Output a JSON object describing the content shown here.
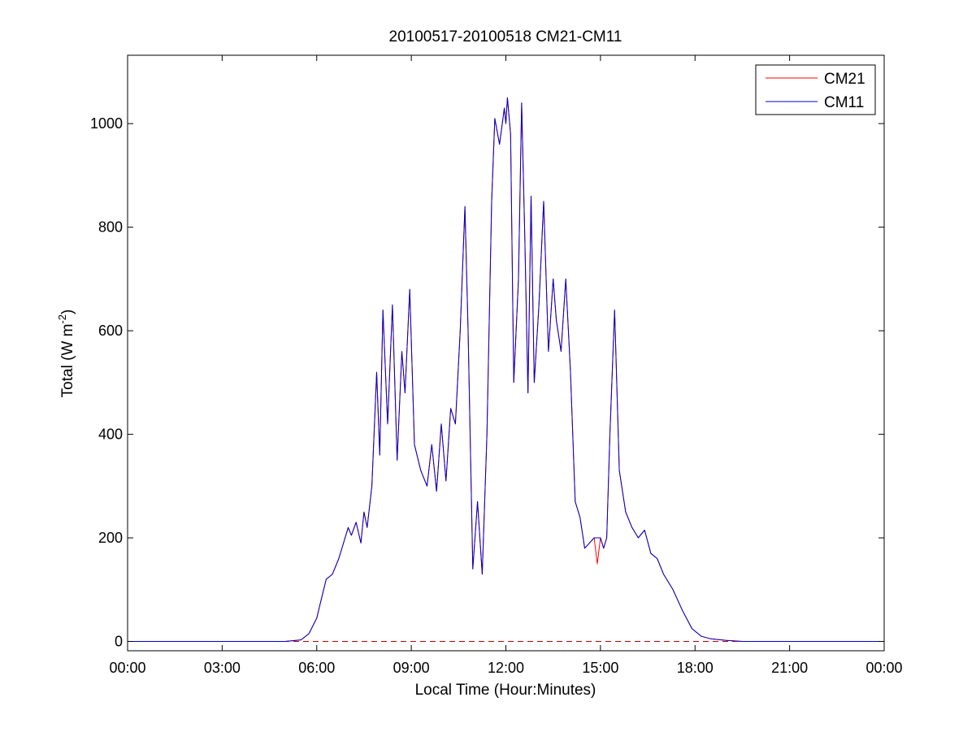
{
  "chart_data": {
    "type": "line",
    "title": "20100517-20100518 CM21-CM11",
    "xlabel": "Local Time (Hour:Minutes)",
    "ylabel": {
      "base": "Total (W m",
      "superscript": "-2",
      "close": ")"
    },
    "x_unit": "hours",
    "xlim": [
      0,
      24
    ],
    "ylim": [
      -18,
      1132
    ],
    "x_ticks": [
      0,
      3,
      6,
      9,
      12,
      15,
      18,
      21,
      24
    ],
    "x_tick_labels": [
      "00:00",
      "03:00",
      "06:00",
      "09:00",
      "12:00",
      "15:00",
      "18:00",
      "21:00",
      "00:00"
    ],
    "y_ticks": [
      0,
      200,
      400,
      600,
      800,
      1000
    ],
    "y_tick_labels": [
      "0",
      "200",
      "400",
      "600",
      "800",
      "1000"
    ],
    "grid": false,
    "legend": {
      "position": "top-right"
    },
    "zero_reference_line": {
      "y": 0,
      "style": "dashed",
      "color": "#c00000"
    },
    "series": [
      {
        "name": "CM21",
        "color": "#ff0000",
        "x": [
          0,
          1,
          2,
          3,
          4,
          5,
          5.5,
          5.75,
          6.0,
          6.1,
          6.3,
          6.5,
          6.7,
          6.85,
          7.0,
          7.1,
          7.25,
          7.4,
          7.5,
          7.6,
          7.75,
          7.9,
          8.0,
          8.1,
          8.25,
          8.4,
          8.55,
          8.7,
          8.8,
          8.95,
          9.1,
          9.3,
          9.5,
          9.65,
          9.8,
          9.95,
          10.1,
          10.25,
          10.4,
          10.55,
          10.7,
          10.8,
          10.95,
          11.1,
          11.25,
          11.4,
          11.55,
          11.65,
          11.8,
          11.95,
          12.0,
          12.05,
          12.15,
          12.25,
          12.4,
          12.5,
          12.6,
          12.7,
          12.8,
          12.9,
          13.05,
          13.2,
          13.35,
          13.5,
          13.6,
          13.75,
          13.9,
          14.05,
          14.2,
          14.35,
          14.5,
          14.65,
          14.8,
          14.9,
          15.0,
          15.1,
          15.2,
          15.3,
          15.45,
          15.6,
          15.8,
          16.0,
          16.2,
          16.4,
          16.6,
          16.8,
          17.0,
          17.3,
          17.6,
          17.9,
          18.2,
          18.5,
          19.0,
          19.5,
          20,
          21,
          22,
          23,
          24
        ],
        "y": [
          0,
          0,
          0,
          0,
          0,
          0,
          3,
          15,
          45,
          70,
          120,
          130,
          160,
          190,
          220,
          205,
          230,
          190,
          250,
          220,
          300,
          520,
          360,
          640,
          420,
          650,
          350,
          560,
          480,
          680,
          380,
          330,
          300,
          380,
          290,
          420,
          310,
          450,
          420,
          600,
          840,
          600,
          140,
          270,
          130,
          400,
          850,
          1010,
          960,
          1030,
          1000,
          1050,
          980,
          500,
          700,
          1040,
          780,
          480,
          860,
          500,
          650,
          850,
          560,
          700,
          620,
          560,
          700,
          520,
          270,
          240,
          180,
          190,
          200,
          150,
          200,
          180,
          200,
          400,
          640,
          330,
          250,
          220,
          200,
          215,
          170,
          160,
          130,
          100,
          60,
          25,
          10,
          5,
          2,
          0,
          0,
          0,
          0,
          0,
          0
        ]
      },
      {
        "name": "CM11",
        "color": "#0000cc",
        "x": [
          0,
          1,
          2,
          3,
          4,
          5,
          5.5,
          5.75,
          6.0,
          6.1,
          6.3,
          6.5,
          6.7,
          6.85,
          7.0,
          7.1,
          7.25,
          7.4,
          7.5,
          7.6,
          7.75,
          7.9,
          8.0,
          8.1,
          8.25,
          8.4,
          8.55,
          8.7,
          8.8,
          8.95,
          9.1,
          9.3,
          9.5,
          9.65,
          9.8,
          9.95,
          10.1,
          10.25,
          10.4,
          10.55,
          10.7,
          10.8,
          10.95,
          11.1,
          11.25,
          11.4,
          11.55,
          11.65,
          11.8,
          11.95,
          12.0,
          12.05,
          12.15,
          12.25,
          12.4,
          12.5,
          12.6,
          12.7,
          12.8,
          12.9,
          13.05,
          13.2,
          13.35,
          13.5,
          13.6,
          13.75,
          13.9,
          14.05,
          14.2,
          14.35,
          14.5,
          14.65,
          14.8,
          14.9,
          15.0,
          15.1,
          15.2,
          15.3,
          15.45,
          15.6,
          15.8,
          16.0,
          16.2,
          16.4,
          16.6,
          16.8,
          17.0,
          17.3,
          17.6,
          17.9,
          18.2,
          18.5,
          19.0,
          19.5,
          20,
          21,
          22,
          23,
          24
        ],
        "y": [
          0,
          0,
          0,
          0,
          0,
          0,
          3,
          15,
          45,
          70,
          120,
          130,
          160,
          190,
          220,
          205,
          230,
          190,
          250,
          220,
          300,
          520,
          360,
          640,
          420,
          650,
          350,
          560,
          480,
          680,
          380,
          330,
          300,
          380,
          290,
          420,
          310,
          450,
          420,
          600,
          840,
          600,
          140,
          270,
          130,
          400,
          850,
          1010,
          960,
          1030,
          1000,
          1050,
          980,
          500,
          700,
          1040,
          780,
          480,
          860,
          500,
          650,
          850,
          560,
          700,
          620,
          560,
          700,
          520,
          270,
          240,
          180,
          190,
          200,
          200,
          200,
          180,
          200,
          400,
          640,
          330,
          250,
          220,
          200,
          215,
          170,
          160,
          130,
          100,
          60,
          25,
          10,
          5,
          2,
          0,
          0,
          0,
          0,
          0,
          0
        ]
      }
    ]
  }
}
